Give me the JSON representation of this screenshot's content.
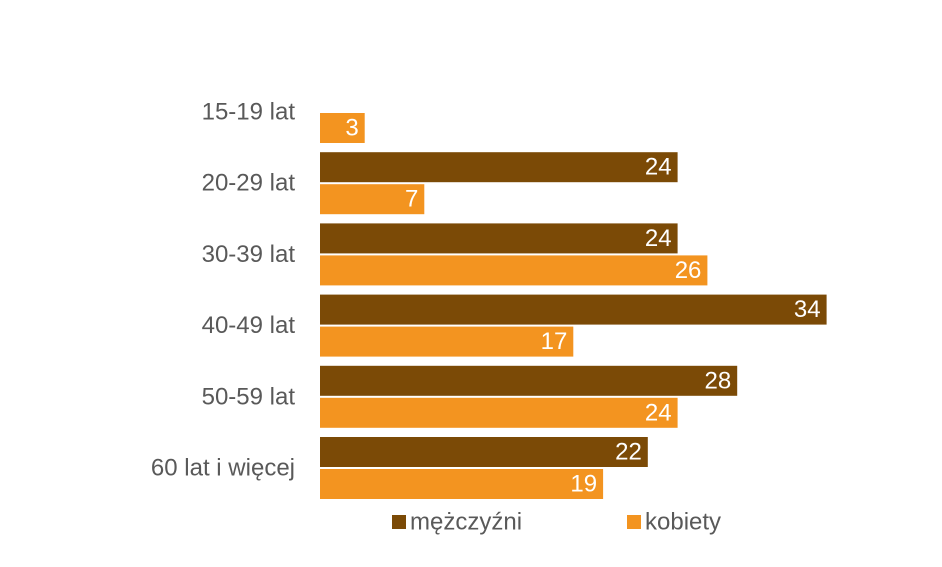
{
  "chart_data": {
    "type": "bar",
    "orientation": "horizontal",
    "categories": [
      "15-19 lat",
      "20-29 lat",
      "30-39 lat",
      "40-49 lat",
      "50-59 lat",
      "60 lat i więcej"
    ],
    "series": [
      {
        "name": "mężczyźni",
        "color": "#7b4a06",
        "values": [
          null,
          24,
          24,
          34,
          28,
          22
        ]
      },
      {
        "name": "kobiety",
        "color": "#f39420",
        "values": [
          3,
          7,
          26,
          17,
          24,
          19
        ]
      }
    ],
    "xlim": [
      0,
      40
    ],
    "grid": false,
    "data_labels": true,
    "legend_position": "bottom"
  }
}
